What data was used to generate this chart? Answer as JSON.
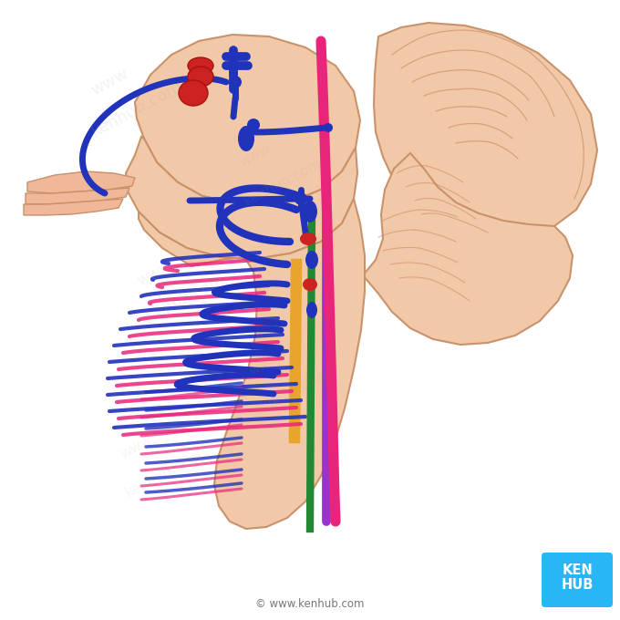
{
  "bg_color": "#ffffff",
  "kenhub_box_color": "#29b6f6",
  "kenhub_text_color": "#ffffff",
  "brainstem_color": "#f2c9a8",
  "brainstem_outline": "#c9926a",
  "cerebellum_color": "#f2c9a8",
  "cerebellum_outline": "#c9926a",
  "tract_pink": "#e8257a",
  "tract_blue": "#2233bb",
  "tract_green": "#228833",
  "tract_purple": "#9933cc",
  "tract_orange": "#e8a020",
  "nucleus_red": "#cc2222",
  "website_text": "© www.kenhub.com"
}
